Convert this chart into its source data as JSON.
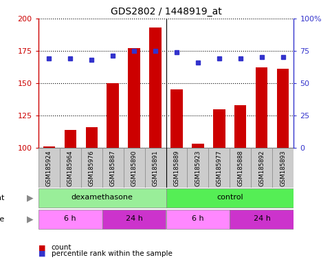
{
  "title": "GDS2802 / 1448919_at",
  "samples": [
    "GSM185924",
    "GSM185964",
    "GSM185976",
    "GSM185887",
    "GSM185890",
    "GSM185891",
    "GSM185889",
    "GSM185923",
    "GSM185977",
    "GSM185888",
    "GSM185892",
    "GSM185893"
  ],
  "counts": [
    101,
    114,
    116,
    150,
    177,
    193,
    145,
    103,
    130,
    133,
    162,
    161
  ],
  "percentiles": [
    69,
    69,
    68,
    71,
    75,
    75,
    74,
    66,
    69,
    69,
    70,
    70
  ],
  "bar_color": "#cc0000",
  "dot_color": "#3333cc",
  "ylim_left": [
    100,
    200
  ],
  "ylim_right": [
    0,
    100
  ],
  "yticks_left": [
    100,
    125,
    150,
    175,
    200
  ],
  "yticks_right": [
    0,
    25,
    50,
    75,
    100
  ],
  "ytick_labels_left": [
    "100",
    "125",
    "150",
    "175",
    "200"
  ],
  "ytick_labels_right": [
    "0",
    "25",
    "50",
    "75",
    "100%"
  ],
  "agent_groups": [
    {
      "label": "dexamethasone",
      "start": 0,
      "end": 6,
      "color": "#99ee99"
    },
    {
      "label": "control",
      "start": 6,
      "end": 12,
      "color": "#55ee55"
    }
  ],
  "time_groups": [
    {
      "label": "6 h",
      "start": 0,
      "end": 3,
      "color": "#ff88ff"
    },
    {
      "label": "24 h",
      "start": 3,
      "end": 6,
      "color": "#cc33cc"
    },
    {
      "label": "6 h",
      "start": 6,
      "end": 9,
      "color": "#ff88ff"
    },
    {
      "label": "24 h",
      "start": 9,
      "end": 12,
      "color": "#cc33cc"
    }
  ],
  "bar_width": 0.55,
  "plot_bg_color": "#ffffff",
  "label_bg_color": "#cccccc",
  "separator_color": "#000000",
  "grid_linestyle": "dotted",
  "figsize": [
    4.83,
    3.84
  ],
  "dpi": 100
}
